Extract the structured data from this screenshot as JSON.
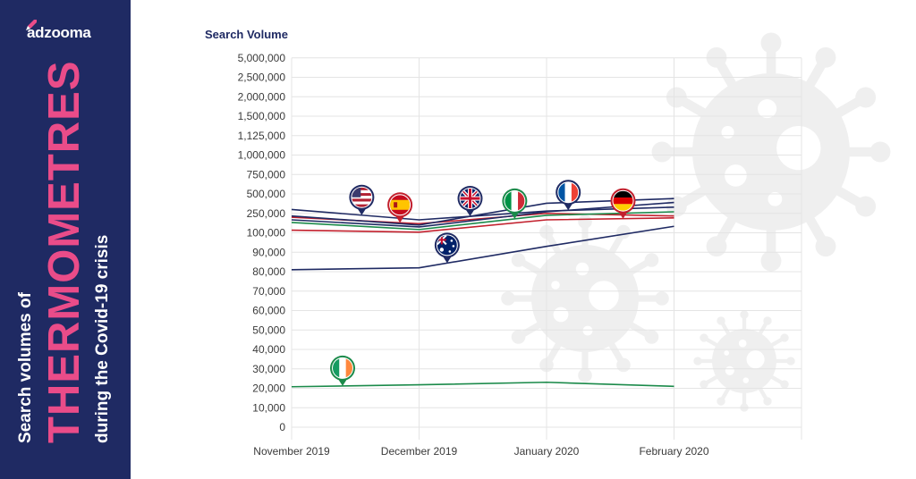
{
  "brand": {
    "name": "adzooma"
  },
  "sidebar": {
    "line1": "Search volumes of",
    "line2": "THERMOMETRES",
    "line3": "during the Covid-19 crisis"
  },
  "colors": {
    "sidebar_bg": "#1f2a63",
    "accent_pink": "#ea4c89",
    "navy": "#1f2a63",
    "red": "#c21f2c",
    "green": "#1b8a4a",
    "gridline": "#e4e4e4",
    "virus_gray": "#efefef"
  },
  "chart_data": {
    "type": "line",
    "ylabel": "Search Volume",
    "categories": [
      "November 2019",
      "December 2019",
      "January 2020",
      "February 2020"
    ],
    "y_ticks": [
      "0",
      "10,000",
      "20,000",
      "30,000",
      "40,000",
      "50,000",
      "60,000",
      "70,000",
      "80,000",
      "90,000",
      "100,000",
      "250,000",
      "500,000",
      "750,000",
      "1,000,000",
      "1,125,000",
      "1,500,000",
      "2,000,000",
      "2,500,000",
      "5,000,000"
    ],
    "y_scale": "non-linear (ticks spaced evenly)",
    "grid": true,
    "series": [
      {
        "flag": "US",
        "color": "#1f2a63",
        "values": [
          300000,
          200000,
          280000,
          330000
        ]
      },
      {
        "flag": "ES",
        "color": "#c21f2c",
        "values": [
          220000,
          170000,
          250000,
          230000
        ]
      },
      {
        "flag": "GB",
        "color": "#1f2a63",
        "values": [
          230000,
          160000,
          380000,
          440000
        ]
      },
      {
        "flag": "IT",
        "color": "#1b8a4a",
        "values": [
          180000,
          125000,
          235000,
          270000
        ]
      },
      {
        "flag": "FR",
        "color": "#1f2a63",
        "values": [
          200000,
          145000,
          270000,
          390000
        ]
      },
      {
        "flag": "DE",
        "color": "#c21f2c",
        "values": [
          120000,
          105000,
          200000,
          215000
        ]
      },
      {
        "flag": "AU",
        "color": "#1f2a63",
        "values": [
          81000,
          82000,
          93000,
          150000
        ]
      },
      {
        "flag": "IE",
        "color": "#1b8a4a",
        "values": [
          20800,
          21800,
          23100,
          21000
        ]
      }
    ]
  }
}
